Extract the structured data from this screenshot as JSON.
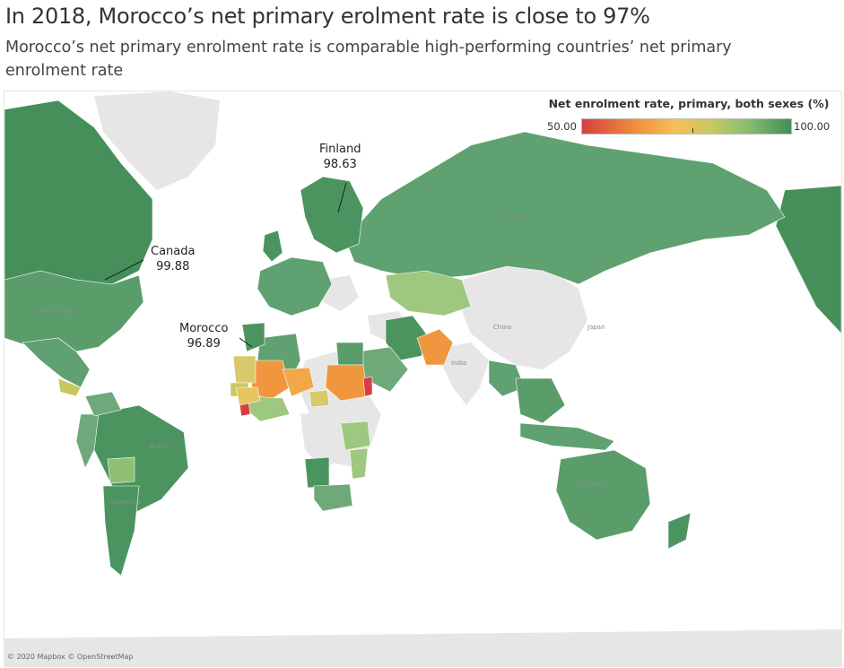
{
  "header": {
    "title": "In 2018, Morocco’s net primary erolment rate is close to 97%",
    "subtitle": "Morocco’s net primary enrolment rate is comparable high-performing countries’ net primary enrolment rate"
  },
  "legend": {
    "title": "Net enrolment rate, primary, both sexes (%)",
    "min": "50.00",
    "max": "100.00",
    "marker_value": 76.5,
    "colors": [
      "#d73f3f",
      "#f0963e",
      "#f6c05a",
      "#c7c85f",
      "#8fbf72",
      "#3f8f56"
    ]
  },
  "annotations": [
    {
      "country": "Finland",
      "value": "98.63"
    },
    {
      "country": "Canada",
      "value": "99.88"
    },
    {
      "country": "Morocco",
      "value": "96.89"
    }
  ],
  "basemap_labels": {
    "china": "China",
    "india": "India",
    "japan": "Japan",
    "russia": "Russia",
    "united_states": "United States",
    "brazil": "Brazil",
    "australia": "Australia",
    "argentina": "Argentina"
  },
  "attribution": "© 2020 Mapbox © OpenStreetMap",
  "colors": {
    "no_data": "#e6e6e6",
    "high": "#4f9563",
    "mid_high": "#8fbf72",
    "mid": "#c7c85f",
    "mid_low": "#f0963e",
    "low": "#d73f3f",
    "border": "#ffffff"
  }
}
